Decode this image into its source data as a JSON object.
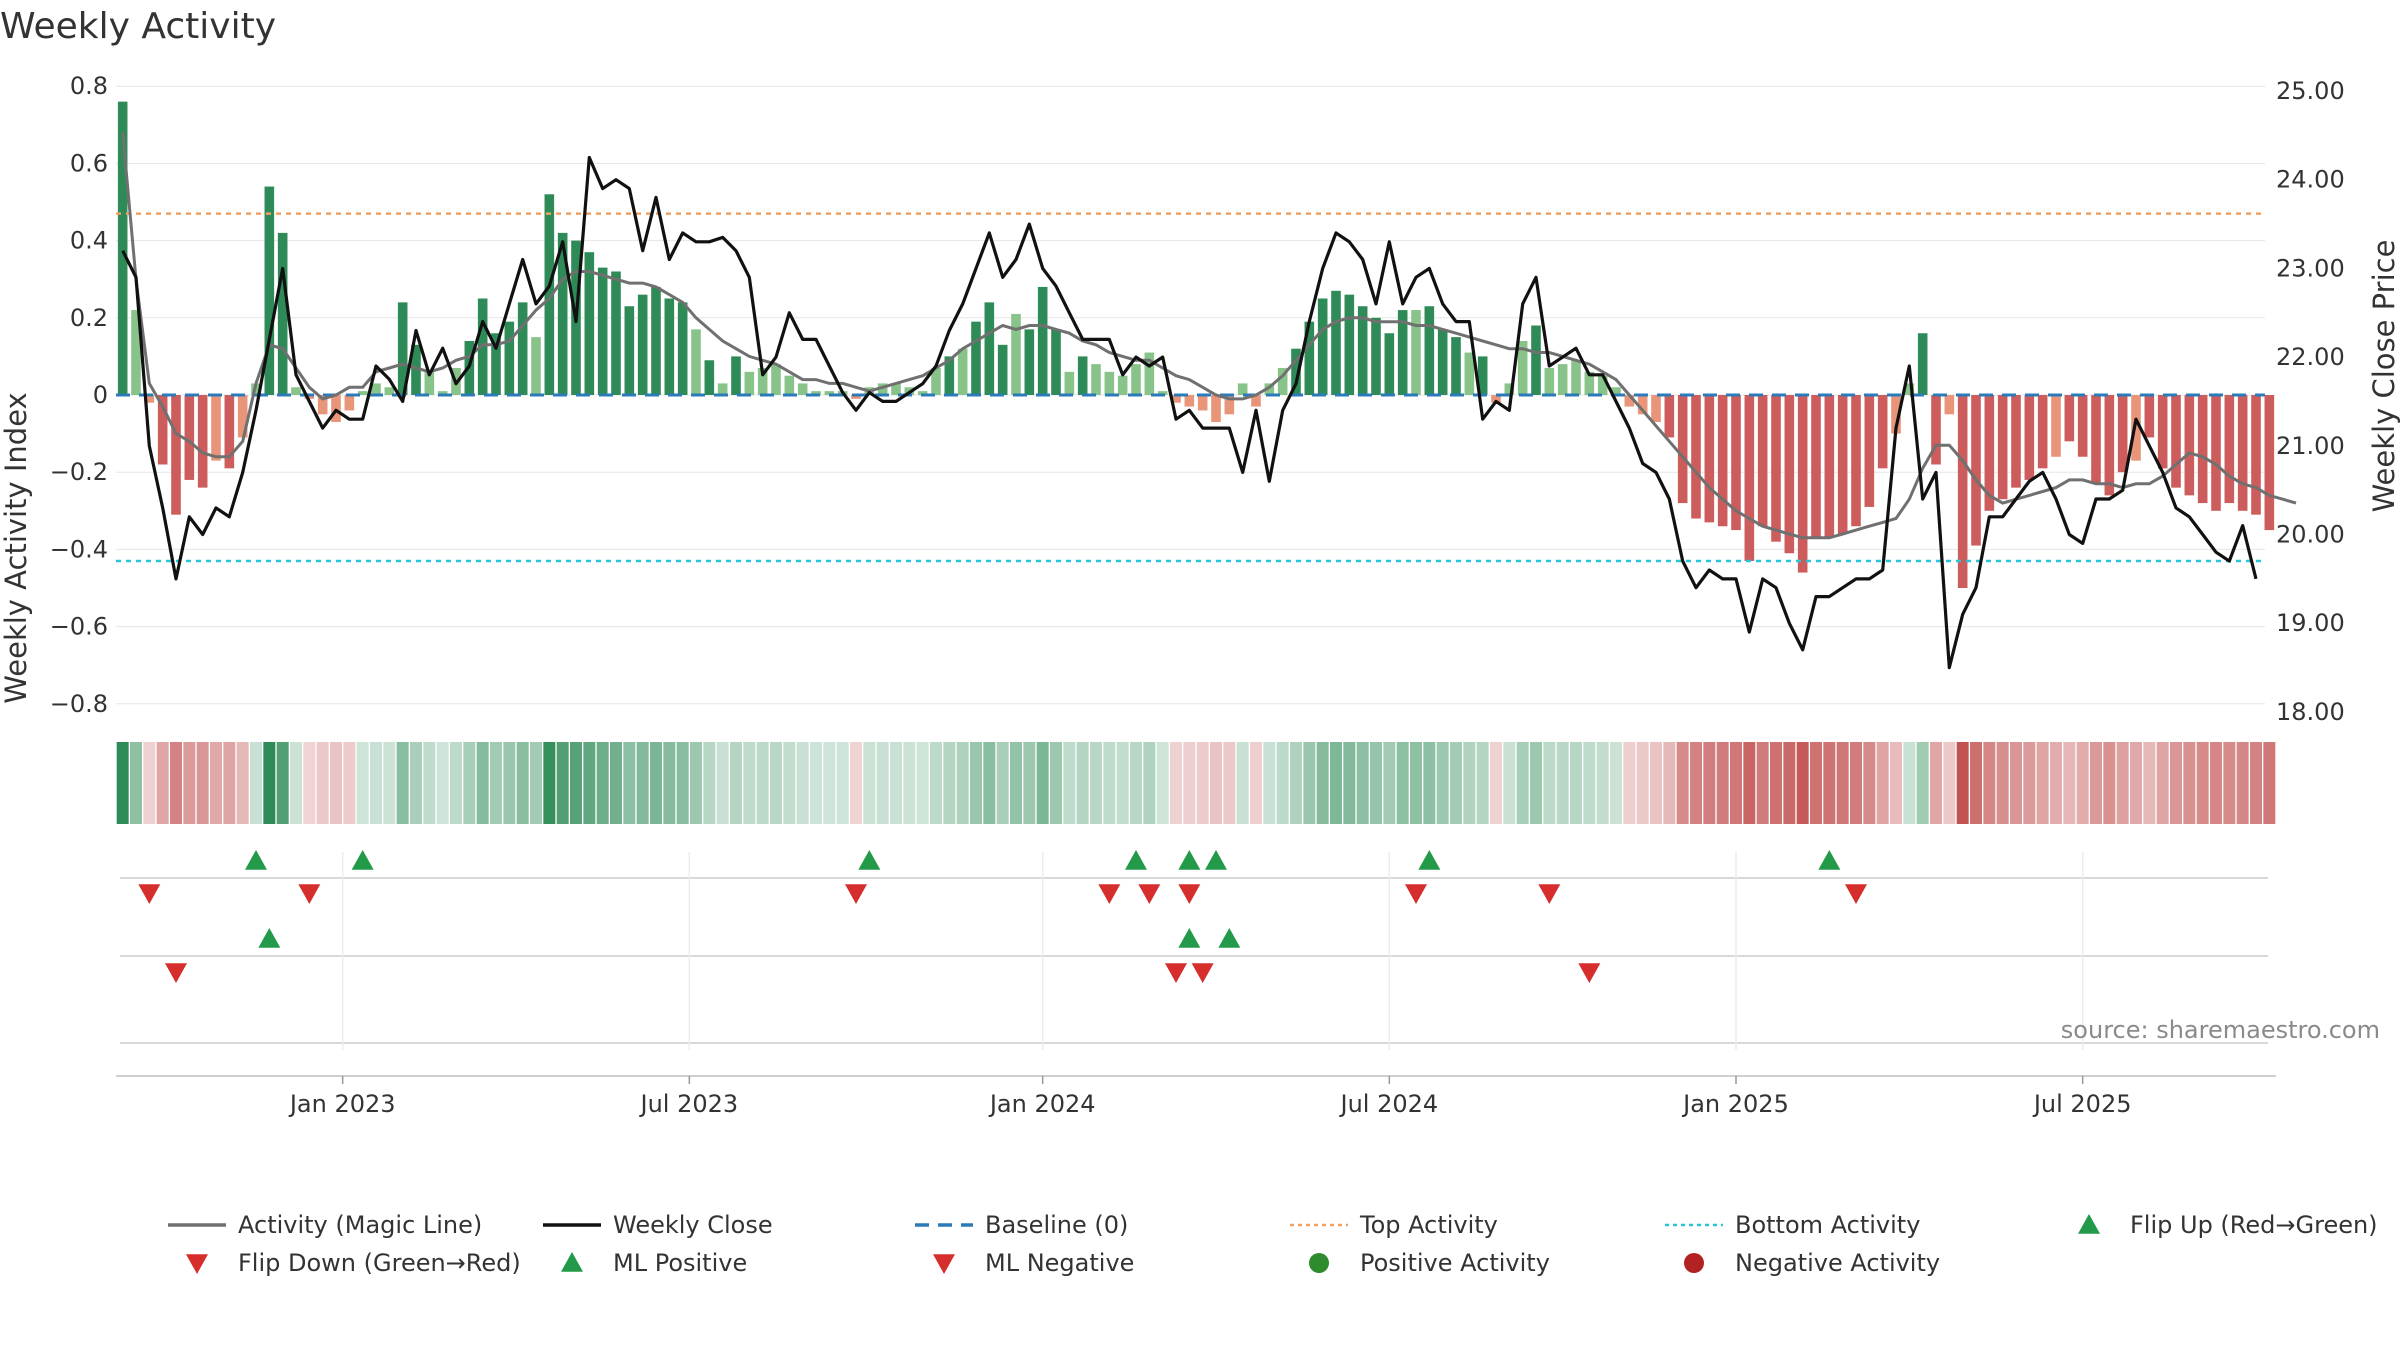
{
  "chart_data": {
    "type": "bar",
    "title": "Weekly Activity",
    "ylabel_left": "Weekly Activity Index",
    "ylabel_right": "Weekly Close Price",
    "left_ylim": [
      -0.8,
      0.8
    ],
    "right_ylim": [
      18.0,
      25.0
    ],
    "left_ticks": [
      "0.8",
      "0.6",
      "0.4",
      "0.2",
      "0",
      "−0.2",
      "−0.4",
      "−0.6",
      "−0.8"
    ],
    "left_tick_values": [
      0.8,
      0.6,
      0.4,
      0.2,
      0,
      -0.2,
      -0.4,
      -0.6,
      -0.8
    ],
    "right_ticks": [
      "25.00",
      "24.00",
      "23.00",
      "22.00",
      "21.00",
      "20.00",
      "19.00",
      "18.00"
    ],
    "right_tick_values": [
      25,
      24,
      23,
      22,
      21,
      20,
      19,
      18
    ],
    "x_ticks": [
      "Jan 2023",
      "Jul 2023",
      "Jan 2024",
      "Jul 2024",
      "Jan 2025",
      "Jul 2025"
    ],
    "x_tick_weeks": [
      16.5,
      42.5,
      69,
      95,
      121,
      147
    ],
    "top_activity": 0.47,
    "bottom_activity": -0.43,
    "baseline": 0,
    "weeks": 159,
    "bar_values": [
      0.76,
      0.22,
      -0.02,
      -0.18,
      -0.31,
      -0.22,
      -0.24,
      -0.17,
      -0.19,
      -0.11,
      0.03,
      0.54,
      0.42,
      0.02,
      -0.01,
      -0.05,
      -0.07,
      -0.04,
      0.01,
      0.03,
      0.02,
      0.24,
      0.13,
      0.06,
      0.01,
      0.07,
      0.14,
      0.25,
      0.16,
      0.19,
      0.24,
      0.15,
      0.52,
      0.42,
      0.4,
      0.37,
      0.33,
      0.32,
      0.23,
      0.26,
      0.28,
      0.25,
      0.24,
      0.17,
      0.09,
      0.03,
      0.1,
      0.06,
      0.07,
      0.08,
      0.05,
      0.03,
      0.01,
      0.01,
      0.01,
      -0.01,
      0.02,
      0.03,
      0.03,
      0.02,
      0.01,
      0.07,
      0.1,
      0.12,
      0.19,
      0.24,
      0.13,
      0.21,
      0.17,
      0.28,
      0.17,
      0.06,
      0.1,
      0.08,
      0.06,
      0.05,
      0.08,
      0.11,
      0.01,
      -0.02,
      -0.03,
      -0.04,
      -0.07,
      -0.05,
      0.03,
      -0.03,
      0.03,
      0.07,
      0.12,
      0.19,
      0.25,
      0.27,
      0.26,
      0.23,
      0.2,
      0.16,
      0.22,
      0.22,
      0.23,
      0.17,
      0.15,
      0.11,
      0.1,
      -0.02,
      0.03,
      0.14,
      0.18,
      0.07,
      0.08,
      0.09,
      0.06,
      0.05,
      0.02,
      -0.03,
      -0.05,
      -0.07,
      -0.11,
      -0.28,
      -0.32,
      -0.33,
      -0.34,
      -0.35,
      -0.43,
      -0.34,
      -0.38,
      -0.41,
      -0.46,
      -0.37,
      -0.37,
      -0.36,
      -0.34,
      -0.29,
      -0.19,
      -0.1,
      0.03,
      0.16,
      -0.18,
      -0.05,
      -0.5,
      -0.39,
      -0.3,
      -0.27,
      -0.24,
      -0.22,
      -0.19,
      -0.16,
      -0.12,
      -0.16,
      -0.23,
      -0.26,
      -0.2,
      -0.17,
      -0.11,
      -0.19,
      -0.24,
      -0.26,
      -0.28,
      -0.3,
      -0.28,
      -0.3,
      -0.31,
      -0.35
    ],
    "magic_line": [
      0.68,
      0.3,
      0.03,
      -0.03,
      -0.1,
      -0.12,
      -0.15,
      -0.16,
      -0.16,
      -0.12,
      0.03,
      0.13,
      0.12,
      0.07,
      0.02,
      -0.01,
      0.0,
      0.02,
      0.02,
      0.06,
      0.07,
      0.08,
      0.07,
      0.06,
      0.07,
      0.09,
      0.1,
      0.13,
      0.13,
      0.14,
      0.18,
      0.22,
      0.25,
      0.3,
      0.32,
      0.32,
      0.31,
      0.3,
      0.29,
      0.29,
      0.28,
      0.26,
      0.24,
      0.2,
      0.17,
      0.14,
      0.12,
      0.1,
      0.09,
      0.08,
      0.06,
      0.04,
      0.04,
      0.03,
      0.03,
      0.02,
      0.01,
      0.02,
      0.03,
      0.04,
      0.05,
      0.07,
      0.09,
      0.12,
      0.14,
      0.16,
      0.18,
      0.17,
      0.18,
      0.18,
      0.17,
      0.16,
      0.14,
      0.13,
      0.11,
      0.1,
      0.09,
      0.09,
      0.07,
      0.05,
      0.04,
      0.02,
      0.0,
      -0.01,
      -0.01,
      0.0,
      0.02,
      0.05,
      0.09,
      0.13,
      0.17,
      0.19,
      0.2,
      0.2,
      0.19,
      0.19,
      0.19,
      0.18,
      0.18,
      0.17,
      0.16,
      0.15,
      0.14,
      0.13,
      0.12,
      0.12,
      0.11,
      0.11,
      0.1,
      0.09,
      0.08,
      0.06,
      0.04,
      0.0,
      -0.04,
      -0.08,
      -0.12,
      -0.16,
      -0.2,
      -0.24,
      -0.27,
      -0.3,
      -0.32,
      -0.34,
      -0.35,
      -0.36,
      -0.37,
      -0.37,
      -0.37,
      -0.36,
      -0.35,
      -0.34,
      -0.33,
      -0.32,
      -0.27,
      -0.19,
      -0.13,
      -0.13,
      -0.17,
      -0.22,
      -0.26,
      -0.28,
      -0.27,
      -0.26,
      -0.25,
      -0.24,
      -0.22,
      -0.22,
      -0.23,
      -0.23,
      -0.24,
      -0.23,
      -0.23,
      -0.21,
      -0.18,
      -0.15,
      -0.16,
      -0.18,
      -0.21,
      -0.23,
      -0.24,
      -0.26,
      -0.27,
      -0.28
    ],
    "weekly_close": [
      23.2,
      22.9,
      21.0,
      20.3,
      19.5,
      20.2,
      20.0,
      20.3,
      20.2,
      20.7,
      21.4,
      22.2,
      23.0,
      21.8,
      21.5,
      21.2,
      21.4,
      21.3,
      21.3,
      21.9,
      21.75,
      21.5,
      22.3,
      21.8,
      22.1,
      21.7,
      21.9,
      22.4,
      22.1,
      22.6,
      23.1,
      22.6,
      22.8,
      23.3,
      22.4,
      24.25,
      23.9,
      24.0,
      23.9,
      23.2,
      23.8,
      23.1,
      23.4,
      23.3,
      23.3,
      23.35,
      23.2,
      22.9,
      21.8,
      22.0,
      22.5,
      22.2,
      22.2,
      21.9,
      21.6,
      21.4,
      21.6,
      21.5,
      21.5,
      21.6,
      21.7,
      21.9,
      22.3,
      22.6,
      23.0,
      23.4,
      22.9,
      23.1,
      23.5,
      23.0,
      22.8,
      22.5,
      22.2,
      22.2,
      22.2,
      21.8,
      22.0,
      21.9,
      22.0,
      21.3,
      21.4,
      21.2,
      21.2,
      21.2,
      20.7,
      21.4,
      20.6,
      21.4,
      21.7,
      22.4,
      23.0,
      23.4,
      23.3,
      23.1,
      22.6,
      23.3,
      22.6,
      22.9,
      23.0,
      22.6,
      22.4,
      22.4,
      21.3,
      21.5,
      21.4,
      22.6,
      22.9,
      21.9,
      22.0,
      22.1,
      21.8,
      21.8,
      21.5,
      21.2,
      20.8,
      20.7,
      20.4,
      19.7,
      19.4,
      19.6,
      19.5,
      19.5,
      18.9,
      19.5,
      19.4,
      19.0,
      18.7,
      19.3,
      19.3,
      19.4,
      19.5,
      19.5,
      19.6,
      21.2,
      21.9,
      20.4,
      20.7,
      18.5,
      19.1,
      19.4,
      20.2,
      20.2,
      20.4,
      20.6,
      20.7,
      20.4,
      20.0,
      19.9,
      20.4,
      20.4,
      20.5,
      21.3,
      21.0,
      20.7,
      20.3,
      20.2,
      20.0,
      19.8,
      19.7,
      20.1,
      19.5
    ],
    "flip_up_weeks": [
      10,
      18,
      56,
      76,
      80,
      82,
      98,
      128
    ],
    "flip_down_weeks": [
      2,
      14,
      55,
      74,
      77,
      80,
      97,
      107,
      130
    ],
    "ml_positive_weeks": [
      11,
      80,
      83
    ],
    "ml_negative_weeks": [
      4,
      79,
      81,
      110
    ]
  },
  "source_note": "source: sharemaestro.com",
  "legend": [
    {
      "label": "Activity (Magic Line)",
      "kind": "line",
      "color": "#707070"
    },
    {
      "label": "Weekly Close",
      "kind": "line",
      "color": "#111111"
    },
    {
      "label": "Baseline (0)",
      "kind": "dash",
      "color": "#2b7bb9"
    },
    {
      "label": "Top Activity",
      "kind": "dot",
      "color": "#f0a060"
    },
    {
      "label": "Bottom Activity",
      "kind": "dot",
      "color": "#26c6da"
    },
    {
      "label": "Flip Up (Red→Green)",
      "kind": "tri-up",
      "color": "#229a4a"
    },
    {
      "label": "Flip Down (Green→Red)",
      "kind": "tri-down",
      "color": "#d62d2d"
    },
    {
      "label": "ML Positive",
      "kind": "tri-up",
      "color": "#229a4a"
    },
    {
      "label": "ML Negative",
      "kind": "tri-down",
      "color": "#d62d2d"
    },
    {
      "label": "Positive Activity",
      "kind": "circle",
      "color": "#2e8b2e"
    },
    {
      "label": "Negative Activity",
      "kind": "circle",
      "color": "#b22222"
    }
  ],
  "colors": {
    "pos_dark": "#2e8b57",
    "pos_light": "#88c48a",
    "neg_dark": "#cd5c5c",
    "neg_light": "#e8957a",
    "grid": "#e6e6e6"
  }
}
